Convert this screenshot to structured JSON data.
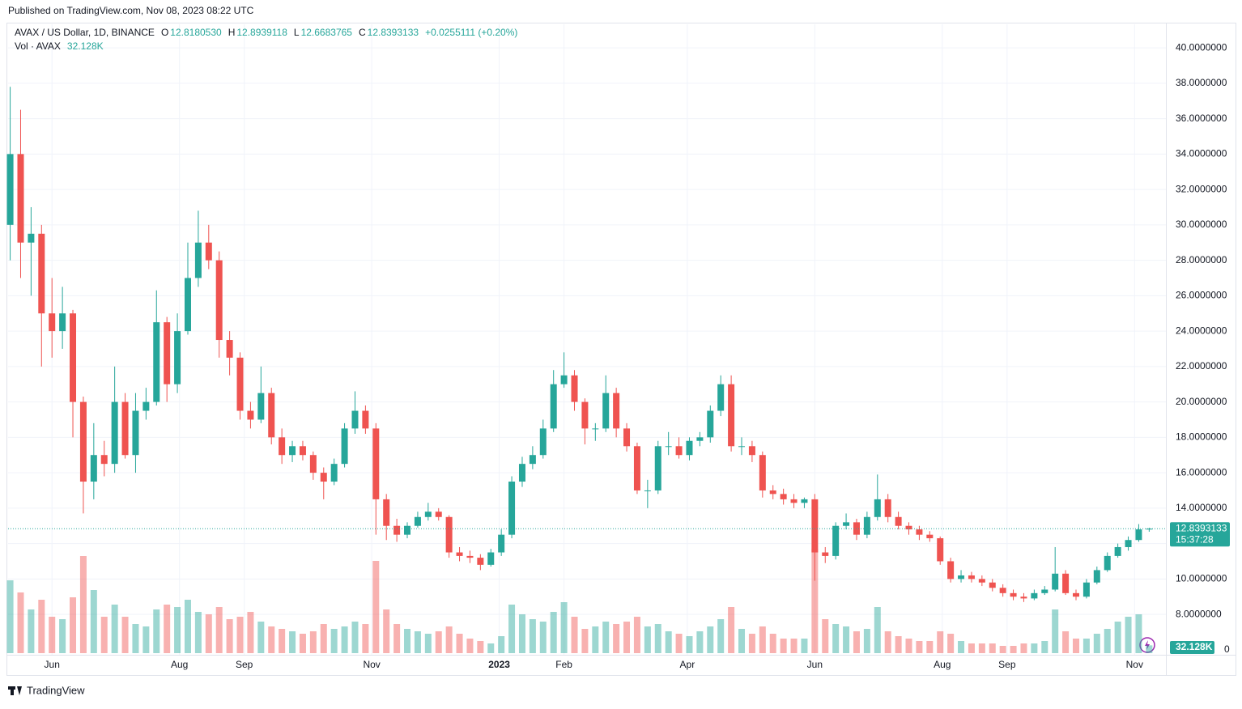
{
  "published": "Published on TradingView.com, Nov 08, 2023 08:22 UTC",
  "brand": "TradingView",
  "chart_data": {
    "type": "candlestick",
    "header": {
      "symbol": "AVAX / US Dollar, 1D, BINANCE",
      "items": [
        {
          "key": "O",
          "value": "12.8180530"
        },
        {
          "key": "H",
          "value": "12.8939118"
        },
        {
          "key": "L",
          "value": "12.6683765"
        },
        {
          "key": "C",
          "value": "12.8393133"
        }
      ],
      "change": "+0.0255111 (+0.20%)",
      "vol_label": "Vol · AVAX",
      "vol_value": "32.128K"
    },
    "countdown": "15:37:28",
    "up_color": "#26a69a",
    "down_color": "#ef5350",
    "xlim": [
      -0.2,
      110.6
    ],
    "xticks": [
      {
        "value": 4,
        "label": "Jun"
      },
      {
        "value": 16.2,
        "label": "Aug"
      },
      {
        "value": 22.4,
        "label": "Sep"
      },
      {
        "value": 34.6,
        "label": "Nov"
      },
      {
        "value": 46.8,
        "label": "2023"
      },
      {
        "value": 53,
        "label": "Feb"
      },
      {
        "value": 64.8,
        "label": "Apr"
      },
      {
        "value": 77,
        "label": "Jun"
      },
      {
        "value": 89.2,
        "label": "Aug"
      },
      {
        "value": 95.4,
        "label": "Sep"
      },
      {
        "value": 107.6,
        "label": "Nov"
      }
    ],
    "ylim": [
      4.53,
      41.33
    ],
    "yticks": [
      {
        "value": 8,
        "label": "8.0000000"
      },
      {
        "value": 10,
        "label": "10.0000000"
      },
      {
        "value": 12,
        "label": "12.0000000"
      },
      {
        "value": 14,
        "label": "14.0000000"
      },
      {
        "value": 16,
        "label": "16.0000000"
      },
      {
        "value": 18,
        "label": "18.0000000"
      },
      {
        "value": 20,
        "label": "20.0000000"
      },
      {
        "value": 22,
        "label": "22.0000000"
      },
      {
        "value": 24,
        "label": "24.0000000"
      },
      {
        "value": 26,
        "label": "26.0000000"
      },
      {
        "value": 28,
        "label": "28.0000000"
      },
      {
        "value": 30,
        "label": "30.0000000"
      },
      {
        "value": 32,
        "label": "32.0000000"
      },
      {
        "value": 34,
        "label": "34.0000000"
      },
      {
        "value": 36,
        "label": "36.0000000"
      },
      {
        "value": 38,
        "label": "38.0000000"
      },
      {
        "value": 40,
        "label": "40.0000000"
      }
    ],
    "vlim": [
      0,
      500000
    ],
    "vticks": [
      0
    ],
    "grid": true,
    "open": [
      30,
      34,
      29,
      29.5,
      25,
      24,
      25,
      20,
      15.5,
      17,
      16.5,
      20,
      17,
      19.5,
      20,
      24.5,
      21,
      24,
      27,
      29,
      28,
      23.5,
      22.5,
      19.5,
      19,
      20.5,
      18,
      17,
      17.5,
      17,
      16,
      15.5,
      16.5,
      18.5,
      19.5,
      18.5,
      14.5,
      13,
      12.5,
      13,
      13.5,
      13.8,
      13.5,
      11.5,
      11.3,
      11.2,
      10.8,
      11.5,
      12.5,
      15.5,
      16.5,
      17,
      18.5,
      21,
      21.5,
      20,
      18.5,
      18.5,
      20.5,
      18.5,
      17.5,
      15,
      15,
      17.5,
      17.5,
      17,
      17.8,
      18,
      19.5,
      21,
      17.5,
      17.5,
      17,
      15,
      14.8,
      14.5,
      14.3,
      14.5,
      11.5,
      11.3,
      13,
      13.2,
      12.5,
      13.5,
      14.5,
      13.5,
      13,
      12.8,
      12.5,
      12.3,
      11,
      10,
      10.2,
      10,
      9.8,
      9.5,
      9.2,
      9,
      8.9,
      9.2,
      9.4,
      10.3,
      9.2,
      9,
      9.8,
      10.5,
      11.3,
      11.8,
      12.2,
      12.818053
    ],
    "high": [
      37.8,
      36.5,
      31,
      30,
      27,
      26.5,
      25.2,
      20.3,
      18.8,
      17.8,
      22,
      20.5,
      20.5,
      20.8,
      26.3,
      24.8,
      25,
      29,
      30.8,
      30,
      28.5,
      24,
      22.8,
      20,
      22,
      20.8,
      18.5,
      17.8,
      17.8,
      17.2,
      16.3,
      16.8,
      18.8,
      20.6,
      19.8,
      18.8,
      14.8,
      13.4,
      13.2,
      13.8,
      14.3,
      14,
      13.6,
      11.8,
      11.6,
      11.4,
      11.7,
      12.8,
      15.8,
      16.9,
      17.5,
      19,
      21.8,
      22.8,
      21.8,
      20.2,
      18.8,
      21.5,
      20.8,
      18.8,
      17.7,
      15.6,
      17.8,
      18.3,
      18,
      18,
      18.3,
      19.8,
      21.5,
      21.5,
      18,
      17.8,
      17.2,
      15.3,
      15.1,
      14.8,
      14.6,
      14.8,
      11.8,
      13.2,
      13.7,
      13.4,
      13.8,
      15.9,
      14.8,
      13.8,
      13.2,
      13,
      12.7,
      12.4,
      11.2,
      10.5,
      10.4,
      10.2,
      10,
      9.7,
      9.4,
      9.2,
      9.4,
      9.6,
      11.8,
      10.5,
      9.4,
      10,
      10.7,
      11.5,
      12,
      12.4,
      13.1,
      12.8939118
    ],
    "low": [
      28,
      27,
      26,
      22,
      22.5,
      23,
      18,
      13.7,
      14.5,
      15.8,
      16,
      16.8,
      16,
      19,
      19.8,
      20,
      20.5,
      23.8,
      26.5,
      27.5,
      22.5,
      21.5,
      19,
      18.5,
      18.8,
      17.6,
      16.5,
      16.6,
      16.7,
      15.6,
      14.5,
      15.3,
      16.3,
      18.2,
      18.2,
      12.5,
      12.2,
      12.1,
      12.3,
      12.9,
      13.3,
      13.3,
      11.2,
      11,
      10.9,
      10.5,
      10.7,
      11.3,
      12.3,
      15.2,
      16.2,
      16.8,
      18.3,
      20.8,
      19.5,
      17.6,
      17.8,
      18.3,
      18,
      17.2,
      14.8,
      14,
      14.8,
      17,
      16.8,
      16.7,
      17.5,
      17.7,
      19.2,
      17.2,
      17,
      16.6,
      14.6,
      14.5,
      14.2,
      14,
      14,
      9.9,
      10.9,
      11.1,
      12.8,
      12.2,
      12.3,
      13.3,
      13.2,
      12.8,
      12.5,
      12.2,
      12.1,
      10.8,
      9.8,
      9.8,
      9.8,
      9.6,
      9.3,
      9,
      8.8,
      8.7,
      8.8,
      9.1,
      9.3,
      9.1,
      8.8,
      8.9,
      9.7,
      10.4,
      11.2,
      11.6,
      12.1,
      12.6683765
    ],
    "close": [
      34,
      29,
      29.5,
      25,
      24,
      25,
      20,
      15.5,
      17,
      16.5,
      20,
      17,
      19.5,
      20,
      24.5,
      21,
      24,
      27,
      29,
      28,
      23.5,
      22.5,
      19.5,
      19,
      20.5,
      18,
      17,
      17.5,
      17,
      16,
      15.5,
      16.5,
      18.5,
      19.5,
      18.5,
      14.5,
      13,
      12.5,
      13,
      13.5,
      13.8,
      13.5,
      11.5,
      11.3,
      11.2,
      10.8,
      11.5,
      12.5,
      15.5,
      16.5,
      17,
      18.5,
      21,
      21.5,
      20,
      18.5,
      18.5,
      20.5,
      18.5,
      17.5,
      15,
      15,
      17.5,
      17.5,
      17,
      17.8,
      18,
      19.5,
      21,
      17.5,
      17.5,
      17,
      15,
      14.8,
      14.5,
      14.3,
      14.5,
      11.5,
      11.3,
      13,
      13.2,
      12.5,
      13.5,
      14.5,
      13.5,
      13,
      12.8,
      12.5,
      12.3,
      11,
      10,
      10.2,
      10,
      9.8,
      9.5,
      9.2,
      9,
      8.9,
      9.2,
      9.4,
      10.3,
      9.2,
      9,
      9.8,
      10.5,
      11.3,
      11.8,
      12.2,
      12.8,
      12.8393133
    ],
    "volume": [
      300000,
      250000,
      180000,
      220000,
      150000,
      140000,
      230000,
      400000,
      260000,
      150000,
      200000,
      150000,
      120000,
      110000,
      180000,
      200000,
      190000,
      220000,
      170000,
      160000,
      190000,
      140000,
      150000,
      170000,
      130000,
      110000,
      100000,
      90000,
      80000,
      90000,
      120000,
      100000,
      110000,
      130000,
      120000,
      380000,
      180000,
      120000,
      100000,
      90000,
      80000,
      90000,
      110000,
      80000,
      60000,
      50000,
      40000,
      70000,
      200000,
      160000,
      140000,
      130000,
      170000,
      210000,
      150000,
      100000,
      110000,
      130000,
      120000,
      130000,
      150000,
      110000,
      120000,
      90000,
      80000,
      70000,
      90000,
      110000,
      140000,
      190000,
      100000,
      80000,
      110000,
      80000,
      60000,
      60000,
      60000,
      430000,
      140000,
      120000,
      110000,
      90000,
      100000,
      190000,
      90000,
      70000,
      60000,
      50000,
      50000,
      90000,
      80000,
      50000,
      40000,
      40000,
      40000,
      30000,
      30000,
      40000,
      40000,
      50000,
      180000,
      90000,
      60000,
      60000,
      80000,
      100000,
      130000,
      150000,
      160000,
      32128
    ]
  }
}
